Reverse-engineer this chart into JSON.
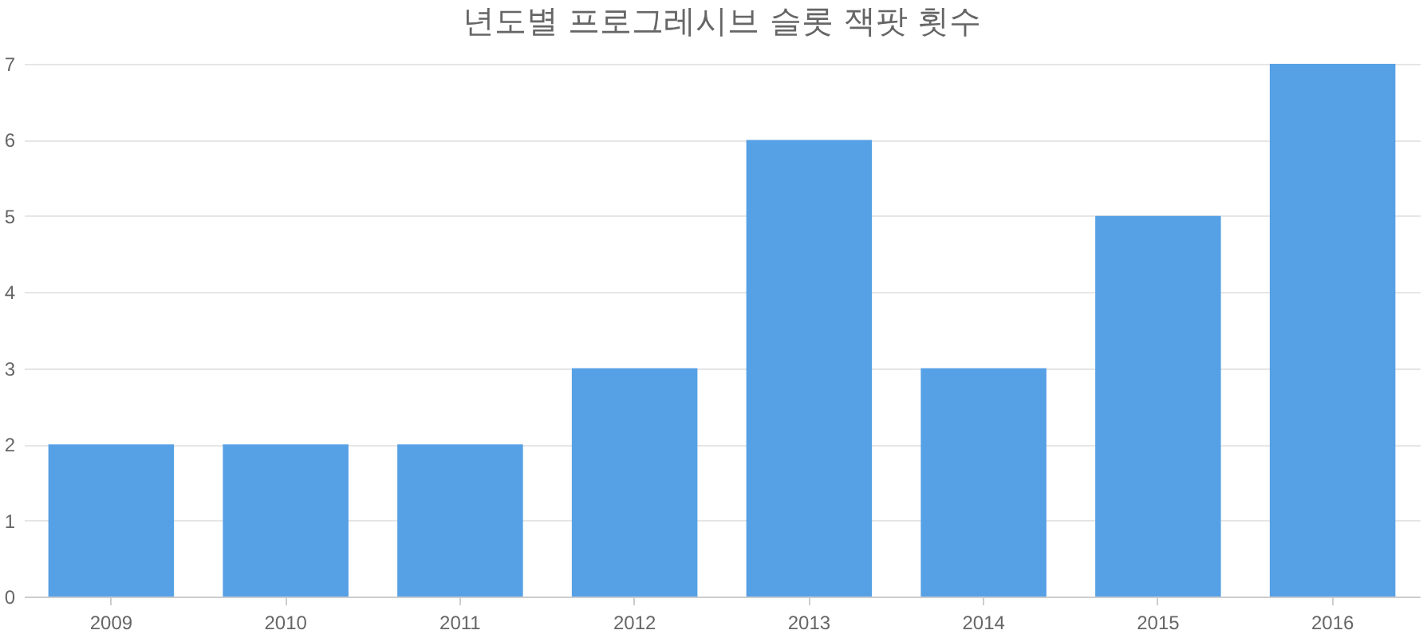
{
  "chart_data": {
    "type": "bar",
    "title": "년도별 프로그레시브 슬롯 잭팟 횟수",
    "categories": [
      "2009",
      "2010",
      "2011",
      "2012",
      "2013",
      "2014",
      "2015",
      "2016"
    ],
    "values": [
      2,
      2,
      2,
      3,
      6,
      3,
      5,
      7
    ],
    "color": "#56a0e5",
    "ylim": [
      0,
      7
    ],
    "yticks": [
      0,
      1,
      2,
      3,
      4,
      5,
      6,
      7
    ],
    "grid": "y"
  }
}
